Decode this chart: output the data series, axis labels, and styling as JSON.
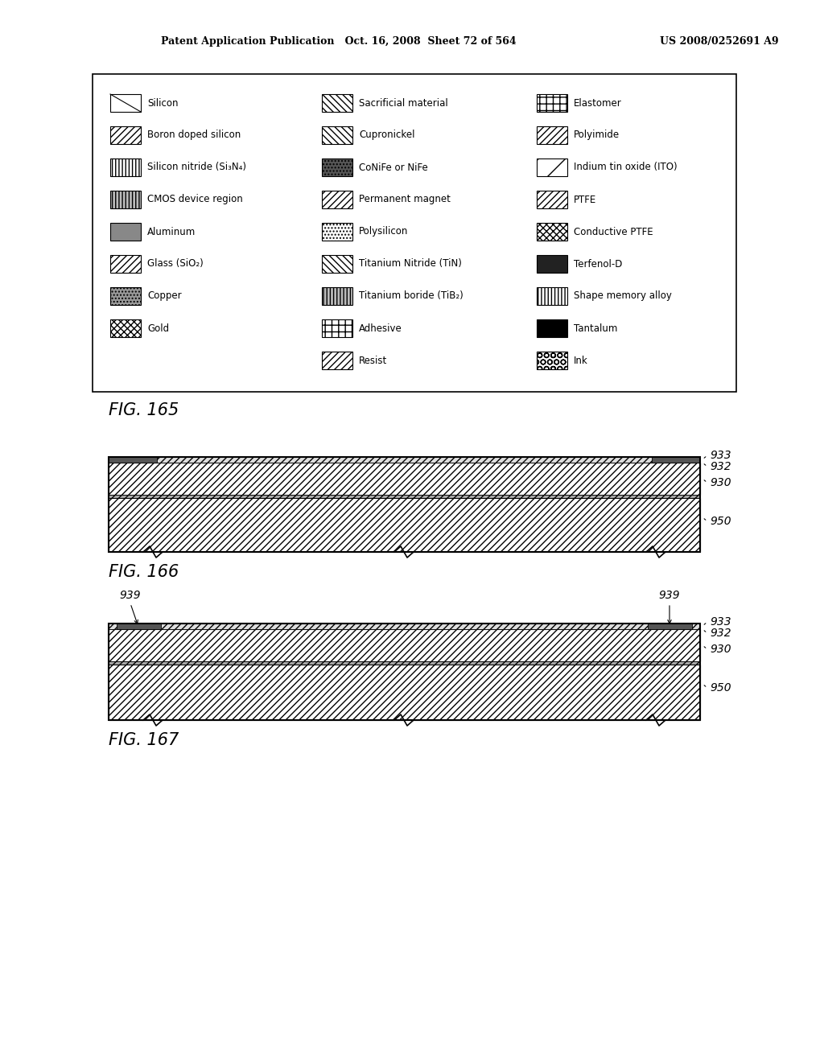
{
  "page_header_left": "Patent Application Publication   Oct. 16, 2008  Sheet 72 of 564",
  "page_header_right": "US 2008/0252691 A9",
  "background_color": "#ffffff",
  "legend_items_col1": [
    {
      "label": "Silicon",
      "pattern": "silicon"
    },
    {
      "label": "Boron doped silicon",
      "pattern": "boron_doped"
    },
    {
      "label": "Silicon nitride (Si₃N₄)",
      "pattern": "silicon_nitride"
    },
    {
      "label": "CMOS device region",
      "pattern": "cmos"
    },
    {
      "label": "Aluminum",
      "pattern": "aluminum"
    },
    {
      "label": "Glass (SiO₂)",
      "pattern": "glass"
    },
    {
      "label": "Copper",
      "pattern": "copper"
    },
    {
      "label": "Gold",
      "pattern": "gold"
    }
  ],
  "legend_items_col2": [
    {
      "label": "Sacrificial material",
      "pattern": "sacrificial"
    },
    {
      "label": "Cupronickel",
      "pattern": "cupronickel"
    },
    {
      "label": "CoNiFe or NiFe",
      "pattern": "conife"
    },
    {
      "label": "Permanent magnet",
      "pattern": "permanent_magnet"
    },
    {
      "label": "Polysilicon",
      "pattern": "polysilicon"
    },
    {
      "label": "Titanium Nitride (TiN)",
      "pattern": "titanium_nitride"
    },
    {
      "label": "Titanium boride (TiB₂)",
      "pattern": "titanium_boride"
    },
    {
      "label": "Adhesive",
      "pattern": "adhesive"
    },
    {
      "label": "Resist",
      "pattern": "resist"
    }
  ],
  "legend_items_col3": [
    {
      "label": "Elastomer",
      "pattern": "elastomer"
    },
    {
      "label": "Polyimide",
      "pattern": "polyimide"
    },
    {
      "label": "Indium tin oxide (ITO)",
      "pattern": "ito"
    },
    {
      "label": "PTFE",
      "pattern": "ptfe"
    },
    {
      "label": "Conductive PTFE",
      "pattern": "conductive_ptfe"
    },
    {
      "label": "Terfenol-D",
      "pattern": "terfenol"
    },
    {
      "label": "Shape memory alloy",
      "pattern": "shape_memory"
    },
    {
      "label": "Tantalum",
      "pattern": "tantalum"
    },
    {
      "label": "Ink",
      "pattern": "ink"
    }
  ],
  "fig165_label": "FIG. 165",
  "fig166_label": "FIG. 166",
  "fig167_label": "FIG. 167"
}
